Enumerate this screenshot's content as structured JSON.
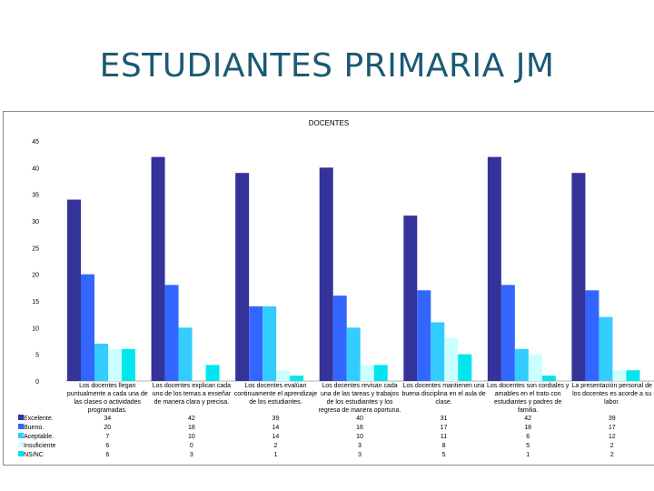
{
  "slide_title": "ESTUDIANTES PRIMARIA JM",
  "chart_data": {
    "type": "bar",
    "title": "DOCENTES",
    "ylim": [
      0,
      45
    ],
    "yticks": [
      0,
      5,
      10,
      15,
      20,
      25,
      30,
      35,
      40,
      45
    ],
    "grid": false,
    "legend": "data-table",
    "categories": [
      [
        "Los docentes llegan",
        "puntualmente a cada una de",
        "las clases o actividades",
        "programadas."
      ],
      [
        "Los docentes explican cada",
        "uno de los temas a enseñar",
        "de manera clara y precisa."
      ],
      [
        "Los docentes evalúan",
        "continuamente el aprendizaje",
        "de los estudiantes."
      ],
      [
        "Los docentes revisan cada",
        "una de las tareas y trabajos",
        "de los estudiantes y los",
        "regresa de manera oportuna."
      ],
      [
        "Los docentes mantienen una",
        "buena disciplina en el aula de",
        "clase."
      ],
      [
        "Los docentes son cordiales y",
        "amables en el trato con",
        "estudiantes y padres de",
        "familia."
      ],
      [
        "La presentación personal de",
        "los docentes es acorde a su",
        "labor."
      ]
    ],
    "series": [
      {
        "name": "Excelente.",
        "color": "#333399",
        "values": [
          34,
          42,
          39,
          40,
          31,
          42,
          39
        ]
      },
      {
        "name": "Bueno.",
        "color": "#3366ff",
        "values": [
          20,
          18,
          14,
          16,
          17,
          18,
          17
        ]
      },
      {
        "name": "Aceptable.",
        "color": "#33ccff",
        "values": [
          7,
          10,
          14,
          10,
          11,
          6,
          12
        ]
      },
      {
        "name": "Insuficiente",
        "color": "#ccffff",
        "values": [
          6,
          0,
          2,
          3,
          8,
          5,
          2
        ]
      },
      {
        "name": "NS/NC",
        "color": "#00e5ee",
        "values": [
          6,
          3,
          1,
          3,
          5,
          1,
          2
        ]
      }
    ]
  }
}
